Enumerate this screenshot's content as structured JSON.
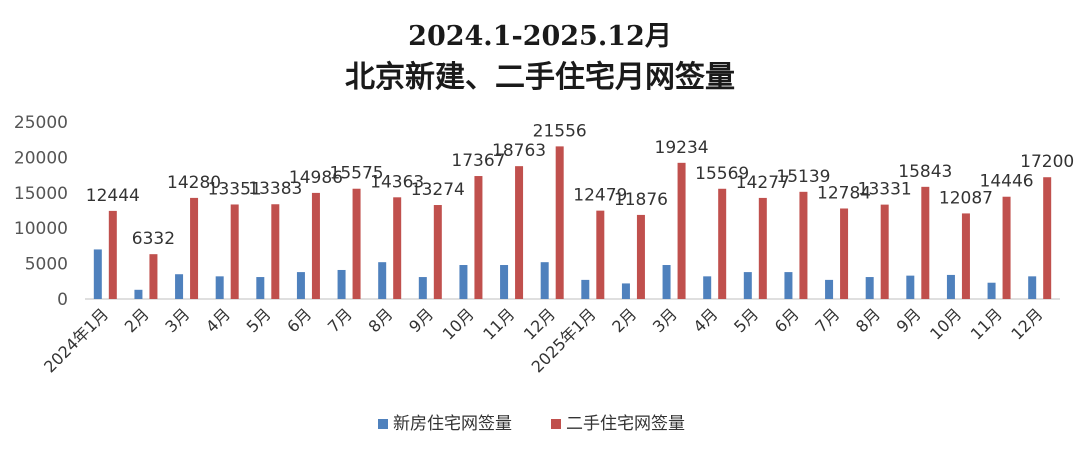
{
  "chart_data": {
    "type": "bar",
    "title_line1": "2024.1-2025.12月",
    "title_line2": "北京新建、二手住宅月网签量",
    "categories": [
      "2024年1月",
      "2月",
      "3月",
      "4月",
      "5月",
      "6月",
      "7月",
      "8月",
      "9月",
      "10月",
      "11月",
      "12月",
      "2025年1月",
      "2月",
      "3月",
      "4月",
      "5月",
      "6月",
      "7月",
      "8月",
      "9月",
      "10月",
      "11月",
      "12月"
    ],
    "series": [
      {
        "name": "新房住宅网签量",
        "color": "#4f81bd",
        "values": [
          7000,
          1300,
          3500,
          3200,
          3100,
          3800,
          4100,
          5200,
          3100,
          4800,
          4800,
          5200,
          2700,
          2200,
          4800,
          3200,
          3800,
          3800,
          2700,
          3100,
          3300,
          3400,
          2300,
          3200
        ]
      },
      {
        "name": "二手住宅网签量",
        "color": "#c0504d",
        "values": [
          12444,
          6332,
          14280,
          13351,
          13383,
          14986,
          15575,
          14363,
          13274,
          17367,
          18763,
          21556,
          12479,
          11876,
          19234,
          15569,
          14277,
          15139,
          12784,
          13331,
          15843,
          12087,
          14446,
          17200
        ]
      }
    ],
    "data_labels": [
      "12444",
      "6332",
      "14280",
      "13351",
      "13383",
      "14986",
      "15575",
      "14363",
      "13274",
      "17367",
      "18763",
      "21556",
      "12479",
      "11876",
      "19234",
      "15569",
      "14277",
      "15139",
      "12784",
      "13331",
      "15843",
      "12087",
      "14446",
      "17200"
    ],
    "y_ticks": [
      "0",
      "5000",
      "10000",
      "15000",
      "20000",
      "25000"
    ],
    "ylim": [
      0,
      25000
    ],
    "grid": false,
    "legend": "bottom-center"
  }
}
